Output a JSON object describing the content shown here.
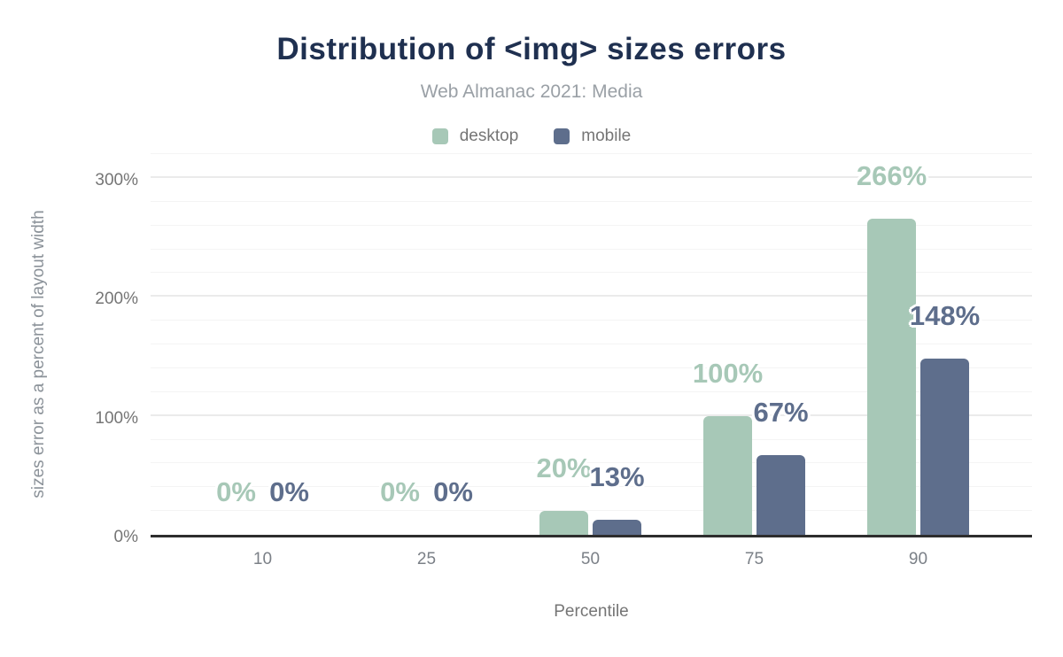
{
  "chart_data": {
    "type": "bar",
    "title": "Distribution of <img> sizes errors",
    "subtitle": "Web Almanac 2021: Media",
    "xlabel": "Percentile",
    "ylabel": "sizes error as a percent of layout width",
    "categories": [
      "10",
      "25",
      "50",
      "75",
      "90"
    ],
    "series": [
      {
        "name": "desktop",
        "color": "#a7c8b7",
        "values": [
          0,
          0,
          20,
          100,
          266
        ],
        "labels": [
          "0%",
          "0%",
          "20%",
          "100%",
          "266%"
        ]
      },
      {
        "name": "mobile",
        "color": "#5e6e8c",
        "values": [
          0,
          0,
          13,
          67,
          148
        ],
        "labels": [
          "0%",
          "0%",
          "13%",
          "67%",
          "148%"
        ]
      }
    ],
    "ylim": [
      0,
      320
    ],
    "yticks": [
      {
        "value": 0,
        "label": "0%"
      },
      {
        "value": 100,
        "label": "100%"
      },
      {
        "value": 200,
        "label": "200%"
      },
      {
        "value": 300,
        "label": "300%"
      }
    ],
    "grid": {
      "minor_step": 20,
      "major_step": 100,
      "horizontal_only": true
    },
    "legend_position": "top"
  }
}
